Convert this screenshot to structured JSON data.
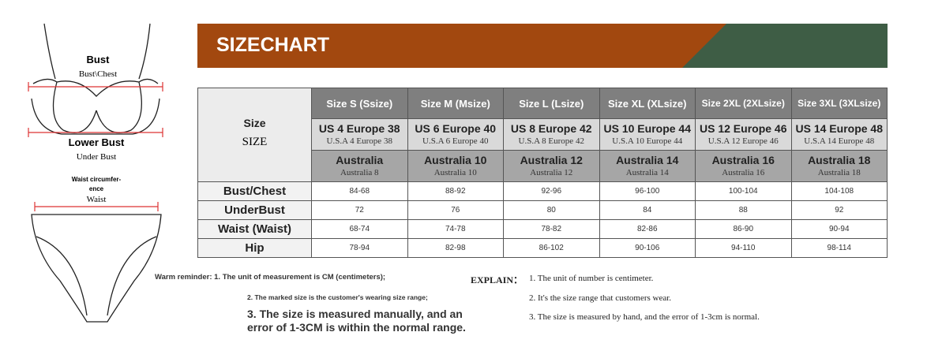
{
  "figure": {
    "bust": "Bust",
    "bust_sub": "Bust\\Chest",
    "lower_bust": "Lower Bust",
    "lower_bust_sub": "Under Bust",
    "waist_lines": [
      "Waist circumfer-",
      "ence"
    ],
    "waist_sub": "Waist"
  },
  "header": {
    "title": "SIZECHART"
  },
  "table": {
    "corner": "Size",
    "corner_sub": "SIZE",
    "columns": [
      {
        "size": "Size S (Ssize)",
        "us": "US 4 Europe 38",
        "us_sub": "U.S.A 4  Europe 38",
        "au": "Australia",
        "au_sub": "Australia 8"
      },
      {
        "size": "Size M (Msize)",
        "us": "US 6 Europe 40",
        "us_sub": "U.S.A 6  Europe 40",
        "au": "Australia 10",
        "au_sub": "Australia 10"
      },
      {
        "size": "Size L (Lsize)",
        "us": "US 8 Europe 42",
        "us_sub": "U.S.A 8  Europe 42",
        "au": "Australia 12",
        "au_sub": "Australia 12"
      },
      {
        "size": "Size XL (XLsize)",
        "us": "US 10 Europe 44",
        "us_sub": "U.S.A 10  Europe 44",
        "au": "Australia 14",
        "au_sub": "Australia 14"
      },
      {
        "size": "Size 2XL (2XLsize)",
        "us": "US 12 Europe 46",
        "us_sub": "U.S.A 12  Europe 46",
        "au": "Australia 16",
        "au_sub": "Australia 16"
      },
      {
        "size": "Size 3XL (3XLsize)",
        "us": "US 14 Europe 48",
        "us_sub": "U.S.A 14  Europe 48",
        "au": "Australia 18",
        "au_sub": "Australia 18"
      }
    ],
    "rows": [
      {
        "label": "Bust/Chest",
        "values": [
          "84-68",
          "88-92",
          "92-96",
          "96-100",
          "100-104",
          "104-108"
        ]
      },
      {
        "label": "UnderBust",
        "values": [
          72,
          76,
          80,
          84,
          88,
          92
        ]
      },
      {
        "label": "Waist (Waist)",
        "values": [
          "68-74",
          "74-78",
          "78-82",
          "82-86",
          "86-90",
          "90-94"
        ]
      },
      {
        "label": "Hip",
        "values": [
          "78-94",
          "82-98",
          "86-102",
          "90-106",
          "94-110",
          "98-114"
        ]
      }
    ]
  },
  "notes": {
    "reminder_1": "Warm reminder: 1. The unit of measurement is CM (centimeters);",
    "reminder_2": "2. The marked size is the customer's wearing size range;",
    "reminder_3": "3. The size is measured manually, and an error of 1-3CM is within the normal range.",
    "explain_label": "EXPLAIN：",
    "explain_1": "1. The unit of number is centimeter.",
    "explain_2": "2. It's the size range that customers wear.",
    "explain_3": "3. The size is measured by hand, and the error of 1-3cm is normal."
  }
}
